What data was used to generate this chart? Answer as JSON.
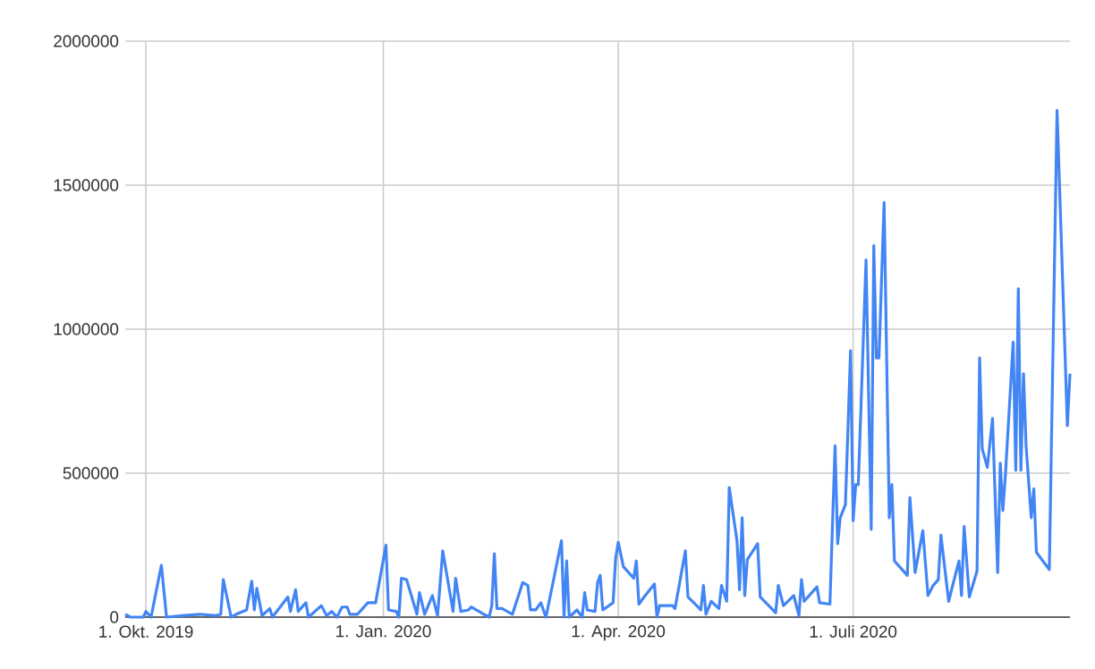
{
  "chart_data": {
    "type": "line",
    "color": "#4285f4",
    "grid": true,
    "xlim": [
      "2019-09-23",
      "2020-09-23"
    ],
    "xticks": [
      {
        "value": "2019-10-01",
        "label": "1. Okt. 2019"
      },
      {
        "value": "2020-01-01",
        "label": "1. Jan. 2020"
      },
      {
        "value": "2020-04-01",
        "label": "1. Apr. 2020"
      },
      {
        "value": "2020-07-01",
        "label": "1. Juli 2020"
      }
    ],
    "ylim": [
      0,
      2000000
    ],
    "yticks": [
      0,
      500000,
      1000000,
      1500000,
      2000000
    ],
    "x": [
      "2019-09-23",
      "2019-09-25",
      "2019-09-30",
      "2019-10-01",
      "2019-10-03",
      "2019-10-07",
      "2019-10-09",
      "2019-10-15",
      "2019-10-22",
      "2019-10-28",
      "2019-10-30",
      "2019-10-31",
      "2019-11-03",
      "2019-11-05",
      "2019-11-09",
      "2019-11-11",
      "2019-11-12",
      "2019-11-13",
      "2019-11-15",
      "2019-11-18",
      "2019-11-19",
      "2019-11-25",
      "2019-11-26",
      "2019-11-28",
      "2019-11-29",
      "2019-12-02",
      "2019-12-03",
      "2019-12-08",
      "2019-12-10",
      "2019-12-12",
      "2019-12-14",
      "2019-12-16",
      "2019-12-18",
      "2019-12-19",
      "2019-12-22",
      "2019-12-26",
      "2019-12-29",
      "2020-01-02",
      "2020-01-03",
      "2020-01-06",
      "2020-01-07",
      "2020-01-08",
      "2020-01-10",
      "2020-01-14",
      "2020-01-15",
      "2020-01-17",
      "2020-01-20",
      "2020-01-22",
      "2020-01-24",
      "2020-01-28",
      "2020-01-29",
      "2020-01-31",
      "2020-02-03",
      "2020-02-04",
      "2020-02-09",
      "2020-02-11",
      "2020-02-12",
      "2020-02-13",
      "2020-02-14",
      "2020-02-16",
      "2020-02-20",
      "2020-02-24",
      "2020-02-26",
      "2020-02-27",
      "2020-02-29",
      "2020-03-02",
      "2020-03-04",
      "2020-03-10",
      "2020-03-11",
      "2020-03-12",
      "2020-03-13",
      "2020-03-16",
      "2020-03-18",
      "2020-03-19",
      "2020-03-20",
      "2020-03-23",
      "2020-03-24",
      "2020-03-25",
      "2020-03-26",
      "2020-03-30",
      "2020-03-31",
      "2020-04-01",
      "2020-04-03",
      "2020-04-07",
      "2020-04-08",
      "2020-04-09",
      "2020-04-11",
      "2020-04-15",
      "2020-04-16",
      "2020-04-17",
      "2020-04-22",
      "2020-04-23",
      "2020-04-27",
      "2020-04-28",
      "2020-05-03",
      "2020-05-04",
      "2020-05-05",
      "2020-05-07",
      "2020-05-10",
      "2020-05-11",
      "2020-05-13",
      "2020-05-14",
      "2020-05-17",
      "2020-05-18",
      "2020-05-19",
      "2020-05-20",
      "2020-05-21",
      "2020-05-25",
      "2020-05-26",
      "2020-06-01",
      "2020-06-02",
      "2020-06-04",
      "2020-06-08",
      "2020-06-10",
      "2020-06-11",
      "2020-06-12",
      "2020-06-17",
      "2020-06-18",
      "2020-06-22",
      "2020-06-24",
      "2020-06-25",
      "2020-06-26",
      "2020-06-28",
      "2020-06-30",
      "2020-07-01",
      "2020-07-02",
      "2020-07-03",
      "2020-07-06",
      "2020-07-08",
      "2020-07-09",
      "2020-07-10",
      "2020-07-11",
      "2020-07-13",
      "2020-07-15",
      "2020-07-16",
      "2020-07-17",
      "2020-07-22",
      "2020-07-23",
      "2020-07-25",
      "2020-07-28",
      "2020-07-30",
      "2020-08-01",
      "2020-08-03",
      "2020-08-04",
      "2020-08-07",
      "2020-08-11",
      "2020-08-12",
      "2020-08-13",
      "2020-08-15",
      "2020-08-18",
      "2020-08-19",
      "2020-08-20",
      "2020-08-22",
      "2020-08-24",
      "2020-08-26",
      "2020-08-27",
      "2020-08-28",
      "2020-08-29",
      "2020-09-01",
      "2020-09-02",
      "2020-09-03",
      "2020-09-04",
      "2020-09-05",
      "2020-09-06",
      "2020-09-08",
      "2020-09-09",
      "2020-09-10",
      "2020-09-15",
      "2020-09-18",
      "2020-09-22",
      "2020-09-23"
    ],
    "values": [
      10000,
      0,
      0,
      20000,
      0,
      180000,
      0,
      5000,
      10000,
      5000,
      10000,
      130000,
      0,
      10000,
      25000,
      125000,
      25000,
      100000,
      5000,
      30000,
      0,
      70000,
      20000,
      95000,
      20000,
      50000,
      0,
      40000,
      5000,
      20000,
      0,
      35000,
      35000,
      10000,
      10000,
      50000,
      50000,
      250000,
      25000,
      20000,
      0,
      135000,
      130000,
      10000,
      85000,
      10000,
      75000,
      5000,
      230000,
      20000,
      135000,
      20000,
      25000,
      35000,
      10000,
      0,
      40000,
      220000,
      30000,
      30000,
      10000,
      120000,
      110000,
      25000,
      25000,
      50000,
      0,
      265000,
      0,
      195000,
      0,
      25000,
      0,
      85000,
      25000,
      20000,
      120000,
      145000,
      25000,
      50000,
      205000,
      260000,
      175000,
      135000,
      195000,
      45000,
      70000,
      115000,
      0,
      40000,
      40000,
      30000,
      230000,
      70000,
      25000,
      110000,
      10000,
      55000,
      30000,
      110000,
      55000,
      450000,
      265000,
      95000,
      345000,
      75000,
      200000,
      255000,
      70000,
      15000,
      110000,
      40000,
      75000,
      5000,
      130000,
      55000,
      105000,
      50000,
      45000,
      595000,
      255000,
      345000,
      390000,
      925000,
      335000,
      460000,
      460000,
      1240000,
      305000,
      1290000,
      900000,
      900000,
      1440000,
      345000,
      460000,
      195000,
      145000,
      415000,
      155000,
      300000,
      75000,
      110000,
      130000,
      285000,
      55000,
      195000,
      75000,
      315000,
      70000,
      160000,
      900000,
      585000,
      520000,
      690000,
      155000,
      535000,
      370000,
      495000,
      955000,
      510000,
      1140000,
      510000,
      845000,
      595000,
      345000,
      445000,
      225000,
      165000,
      1760000,
      665000,
      845000
    ]
  }
}
